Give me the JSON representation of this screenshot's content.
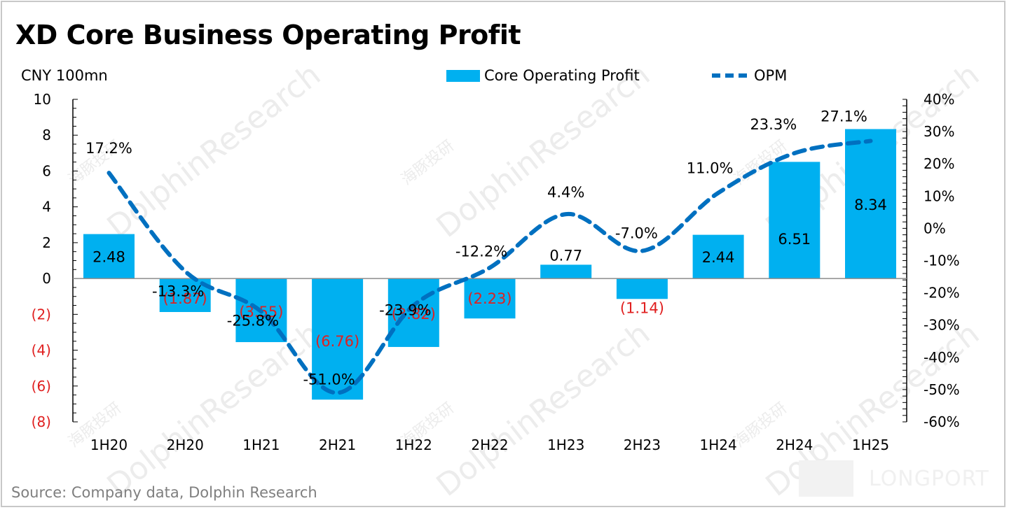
{
  "title": "XD Core Business Operating Profit",
  "unit_label": "CNY 100mn",
  "source": "Source:  Company data, Dolphin Research",
  "watermark": {
    "text_en": "DolphinResearch",
    "text_cn": "海豚投研",
    "brand": "LONGPORT"
  },
  "colors": {
    "bar": "#00b0f0",
    "line": "#0070c0",
    "negative_label": "#e02020",
    "axis": "#000000",
    "zero_line": "#8c8c8c"
  },
  "chart_data": {
    "type": "bar",
    "title": "XD Core Business Operating Profit",
    "xlabel": "",
    "ylabel": "CNY 100mn",
    "y2label": "",
    "categories": [
      "1H20",
      "2H20",
      "1H21",
      "2H21",
      "1H22",
      "2H22",
      "1H23",
      "2H23",
      "1H24",
      "2H24",
      "1H25"
    ],
    "series": [
      {
        "name": "Core Operating Profit",
        "type": "bar",
        "axis": "left",
        "values": [
          2.48,
          -1.87,
          -3.55,
          -6.76,
          -3.82,
          -2.23,
          0.77,
          -1.14,
          2.44,
          6.51,
          8.34
        ],
        "labels": [
          "2.48",
          "(1.87)",
          "(3.55)",
          "(6.76)",
          "(3.82)",
          "(2.23)",
          "0.77",
          "(1.14)",
          "2.44",
          "6.51",
          "8.34"
        ]
      },
      {
        "name": "OPM",
        "type": "line",
        "style": "dashed-smooth",
        "axis": "right",
        "values": [
          17.2,
          -13.3,
          -25.8,
          -51.0,
          -23.9,
          -12.2,
          4.4,
          -7.0,
          11.0,
          23.3,
          27.1
        ],
        "labels": [
          "17.2%",
          "-13.3%",
          "-25.8%",
          "-51.0%",
          "-23.9%",
          "-12.2%",
          "4.4%",
          "-7.0%",
          "11.0%",
          "23.3%",
          "27.1%"
        ]
      }
    ],
    "left_axis": {
      "ylim": [
        -8,
        10
      ],
      "ticks": [
        10,
        8,
        6,
        4,
        2,
        0,
        -2,
        -4,
        -6,
        -8
      ],
      "tick_labels": [
        "10",
        "8",
        "6",
        "4",
        "2",
        "0",
        "(2)",
        "(4)",
        "(6)",
        "(8)"
      ]
    },
    "right_axis": {
      "ylim": [
        -60,
        40
      ],
      "ticks": [
        40,
        30,
        20,
        10,
        0,
        -10,
        -20,
        -30,
        -40,
        -50,
        -60
      ],
      "tick_labels": [
        "40%",
        "30%",
        "20%",
        "10%",
        "0%",
        "-10%",
        "-20%",
        "-30%",
        "-40%",
        "-50%",
        "-60%"
      ]
    },
    "legend": {
      "placement": "top-center",
      "entries": [
        "Core Operating Profit",
        "OPM"
      ]
    },
    "grid": false
  }
}
